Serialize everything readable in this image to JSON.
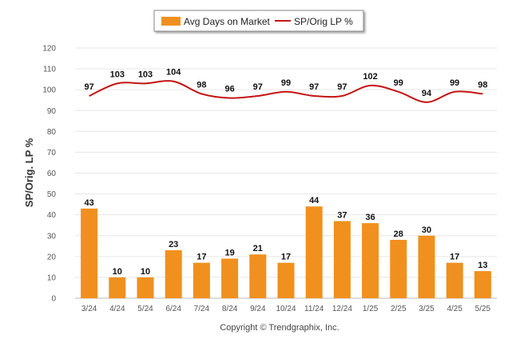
{
  "chart_data": {
    "type": "bar",
    "categories": [
      "3/24",
      "4/24",
      "5/24",
      "6/24",
      "7/24",
      "8/24",
      "9/24",
      "10/24",
      "11/24",
      "12/24",
      "1/25",
      "2/25",
      "3/25",
      "4/25",
      "5/25"
    ],
    "series": [
      {
        "name": "Avg Days on Market",
        "type": "bar",
        "color": "#f0901e",
        "values": [
          43,
          10,
          10,
          23,
          17,
          19,
          21,
          17,
          44,
          37,
          36,
          28,
          30,
          17,
          13
        ]
      },
      {
        "name": "SP/Orig LP %",
        "type": "line",
        "color": "#c41414",
        "values": [
          97,
          103,
          103,
          104,
          98,
          96,
          97,
          99,
          97,
          97,
          102,
          99,
          94,
          99,
          98
        ]
      }
    ],
    "ylabel": "SP/Orig. LP %",
    "ylim": [
      0,
      120
    ],
    "yticks": [
      0,
      10,
      20,
      30,
      40,
      50,
      60,
      70,
      80,
      90,
      100,
      110,
      120
    ],
    "grid": true,
    "legend_position": "top-center",
    "data_labels": true,
    "footer": "Copyright © Trendgraphix, Inc."
  }
}
